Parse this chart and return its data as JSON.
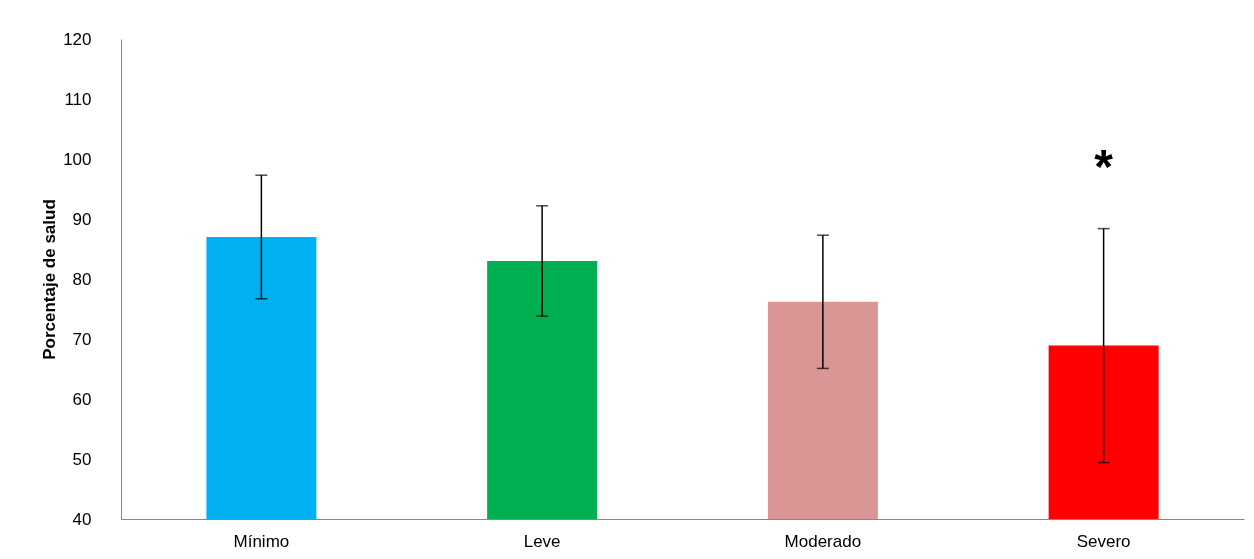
{
  "chart_data": {
    "type": "bar",
    "ylabel": "Porcentaje de salud",
    "categories": [
      "Mínimo",
      "Leve",
      "Moderado",
      "Severo"
    ],
    "values": [
      87.0,
      83.0,
      76.2,
      68.9
    ],
    "colors": [
      "#00b0f0",
      "#00b050",
      "#d99694",
      "#ff0000"
    ],
    "errors": [
      10.3,
      9.2,
      11.1,
      19.5
    ],
    "ylim": [
      40,
      120
    ],
    "yticks": [
      40,
      50,
      60,
      70,
      80,
      90,
      100,
      110,
      120
    ],
    "grid": false,
    "annotations": [
      "*"
    ]
  }
}
